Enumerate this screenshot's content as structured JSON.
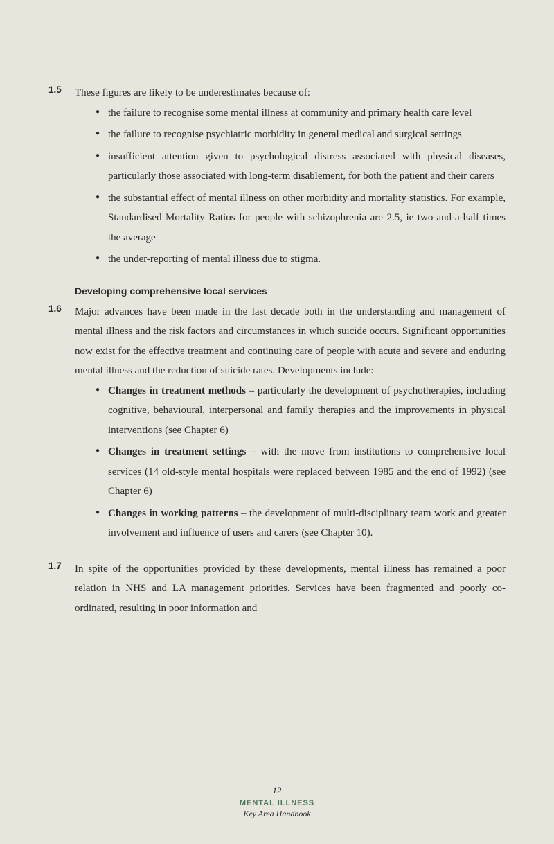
{
  "background_color": "#e8e5dd",
  "text_color": "#2a2a2a",
  "accent_color": "#4a7a5a",
  "body_font": "Garamond, 'Times New Roman', serif",
  "label_font": "Arial, Helvetica, sans-serif",
  "sections": {
    "s15": {
      "number": "1.5",
      "intro": "These figures are likely to be underestimates because of:",
      "bullets": [
        "the failure to recognise some mental illness at community and primary health care level",
        "the failure to recognise psychiatric morbidity in general medical and surgical settings",
        "insufficient attention given to psychological distress associated with physical diseases, particularly those associated with long-term disablement, for both the patient and their carers",
        "the substantial effect of mental illness on other morbidity and mortality statistics. For example, Standardised Mortality Ratios for people with schizophrenia are 2.5, ie two-and-a-half times the average",
        "the under-reporting of mental illness due to stigma."
      ]
    },
    "subheading": "Developing comprehensive local services",
    "s16": {
      "number": "1.6",
      "intro": "Major advances have been made in the last decade both in the understanding and management of mental illness and the risk factors and circumstances in which suicide occurs. Significant opportunities now exist for the effective treatment and continuing care of people with acute and severe and enduring mental illness and the reduction of suicide rates. Developments include:",
      "bullets": [
        {
          "lead": "Changes in treatment methods",
          "rest": " – particularly the development of psychotherapies, including cognitive, behavioural, interpersonal and family therapies and the improvements in physical interventions (see Chapter 6)"
        },
        {
          "lead": "Changes in treatment settings",
          "rest": " – with the move from institutions to comprehensive local services (14 old-style mental hospitals were replaced between 1985 and the end of 1992) (see Chapter 6)"
        },
        {
          "lead": "Changes in working patterns",
          "rest": " – the development of multi-disciplinary team work and greater involvement and influence of users and carers (see Chapter 10)."
        }
      ]
    },
    "s17": {
      "number": "1.7",
      "text": "In spite of the opportunities provided by these developments, mental illness has remained a poor relation in NHS and LA management priorities. Services have been fragmented and poorly co-ordinated, resulting in poor information and"
    }
  },
  "footer": {
    "page": "12",
    "title": "MENTAL ILLNESS",
    "subtitle": "Key Area Handbook"
  }
}
